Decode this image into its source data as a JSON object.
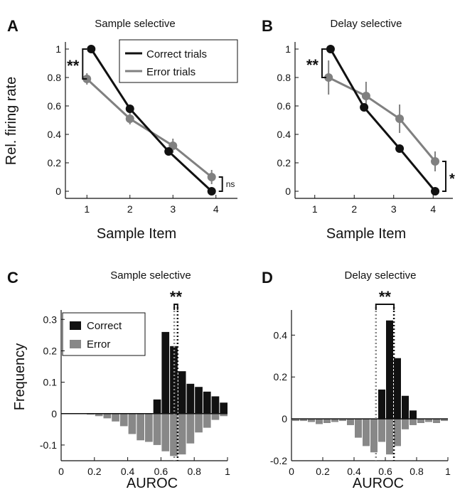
{
  "chart_data": [
    {
      "panel": "A",
      "type": "line",
      "title": "Sample selective",
      "xlabel": "Sample Item",
      "ylabel": "Rel. firing rate",
      "x_ticks": [
        "1",
        "2",
        "3",
        "4"
      ],
      "y_ticks": [
        "0",
        "0.2",
        "0.4",
        "0.6",
        "0.8",
        "1"
      ],
      "xlim": [
        0.5,
        4.5
      ],
      "ylim": [
        -0.05,
        1.05
      ],
      "legend": [
        "Correct trials",
        "Error trials"
      ],
      "series": [
        {
          "name": "Correct trials",
          "color": "#111111",
          "x": [
            1.1,
            2.0,
            2.9,
            3.9
          ],
          "y": [
            1.0,
            0.58,
            0.28,
            0.0
          ],
          "err": [
            0,
            0,
            0,
            0
          ]
        },
        {
          "name": "Error trials",
          "color": "#808080",
          "x": [
            1.0,
            2.0,
            3.0,
            3.9
          ],
          "y": [
            0.79,
            0.51,
            0.32,
            0.1
          ],
          "err": [
            0.04,
            0.04,
            0.05,
            0.05
          ]
        }
      ],
      "annotations": [
        {
          "text": "**",
          "between": [
            0.79,
            1.0
          ],
          "at_x": 1
        },
        {
          "text": "ns",
          "between": [
            0.0,
            0.1
          ],
          "at_x": 4
        }
      ]
    },
    {
      "panel": "B",
      "type": "line",
      "title": "Delay selective",
      "xlabel": "Sample Item",
      "ylabel": "",
      "x_ticks": [
        "1",
        "2",
        "3",
        "4"
      ],
      "y_ticks": [
        "0",
        "0.2",
        "0.4",
        "0.6",
        "0.8",
        "1"
      ],
      "xlim": [
        0.5,
        4.5
      ],
      "ylim": [
        -0.05,
        1.05
      ],
      "series": [
        {
          "name": "Correct trials",
          "color": "#111111",
          "x": [
            1.4,
            2.25,
            3.15,
            4.05
          ],
          "y": [
            1.0,
            0.59,
            0.3,
            0.0
          ],
          "err": [
            0,
            0,
            0,
            0
          ]
        },
        {
          "name": "Error trials",
          "color": "#808080",
          "x": [
            1.35,
            2.3,
            3.15,
            4.05
          ],
          "y": [
            0.8,
            0.67,
            0.51,
            0.21
          ],
          "err": [
            0.12,
            0.1,
            0.1,
            0.07
          ]
        }
      ],
      "annotations": [
        {
          "text": "**",
          "between": [
            0.8,
            1.0
          ],
          "at_x": 1
        },
        {
          "text": "*",
          "between": [
            0.0,
            0.21
          ],
          "at_x": 4
        }
      ]
    },
    {
      "panel": "C",
      "type": "bar",
      "title": "Sample selective",
      "xlabel": "AUROC",
      "ylabel": "Frequency",
      "x_ticks": [
        "0",
        "0.2",
        "0.4",
        "0.6",
        "0.8",
        "1"
      ],
      "y_ticks": [
        "-0.1",
        "0",
        "0.1",
        "0.2",
        "0.3"
      ],
      "xlim": [
        0,
        1
      ],
      "ylim": [
        -0.15,
        0.33
      ],
      "bin_width": 0.05,
      "bin_centers": [
        0.025,
        0.075,
        0.125,
        0.175,
        0.225,
        0.275,
        0.325,
        0.375,
        0.425,
        0.475,
        0.525,
        0.575,
        0.625,
        0.675,
        0.725,
        0.775,
        0.825,
        0.875,
        0.925,
        0.975
      ],
      "series": [
        {
          "name": "Correct",
          "color": "#111111",
          "values": [
            0,
            0,
            0,
            0,
            0,
            0,
            0,
            0,
            0,
            0,
            0,
            0.045,
            0.26,
            0.215,
            0.135,
            0.095,
            0.085,
            0.07,
            0.055,
            0.035
          ]
        },
        {
          "name": "Error",
          "color": "#888888",
          "values": [
            0,
            0,
            0,
            -0.003,
            -0.008,
            -0.015,
            -0.025,
            -0.04,
            -0.065,
            -0.085,
            -0.09,
            -0.1,
            -0.12,
            -0.135,
            -0.13,
            -0.095,
            -0.06,
            -0.045,
            -0.02,
            -0.008
          ]
        }
      ],
      "vlines": [
        {
          "x": 0.68,
          "color": "#888888"
        },
        {
          "x": 0.7,
          "color": "#111111"
        }
      ],
      "annotations": [
        {
          "text": "**"
        }
      ]
    },
    {
      "panel": "D",
      "type": "bar",
      "title": "Delay selective",
      "xlabel": "AUROC",
      "ylabel": "",
      "x_ticks": [
        "0",
        "0.2",
        "0.4",
        "0.6",
        "0.8",
        "1"
      ],
      "y_ticks": [
        "-0.2",
        "0",
        "0.2",
        "0.4"
      ],
      "xlim": [
        0,
        1
      ],
      "ylim": [
        -0.2,
        0.52
      ],
      "bin_width": 0.05,
      "bin_centers": [
        0.025,
        0.075,
        0.125,
        0.175,
        0.225,
        0.275,
        0.325,
        0.375,
        0.425,
        0.475,
        0.525,
        0.575,
        0.625,
        0.675,
        0.725,
        0.775,
        0.825,
        0.875,
        0.925,
        0.975
      ],
      "series": [
        {
          "name": "Correct",
          "color": "#111111",
          "values": [
            0,
            0,
            0,
            0,
            0,
            0,
            0,
            0,
            0,
            0,
            0,
            0.14,
            0.47,
            0.29,
            0.11,
            0.04,
            0,
            0,
            0,
            0
          ]
        },
        {
          "name": "Error",
          "color": "#888888",
          "values": [
            -0.01,
            -0.01,
            -0.015,
            -0.025,
            -0.02,
            -0.015,
            -0.01,
            -0.03,
            -0.09,
            -0.13,
            -0.16,
            -0.11,
            -0.17,
            -0.13,
            -0.05,
            -0.03,
            -0.02,
            -0.015,
            -0.02,
            -0.01
          ]
        }
      ],
      "vlines": [
        {
          "x": 0.54,
          "color": "#888888"
        },
        {
          "x": 0.655,
          "color": "#111111"
        }
      ],
      "annotations": [
        {
          "text": "**"
        }
      ]
    }
  ],
  "panel_letters": [
    "A",
    "B",
    "C",
    "D"
  ]
}
